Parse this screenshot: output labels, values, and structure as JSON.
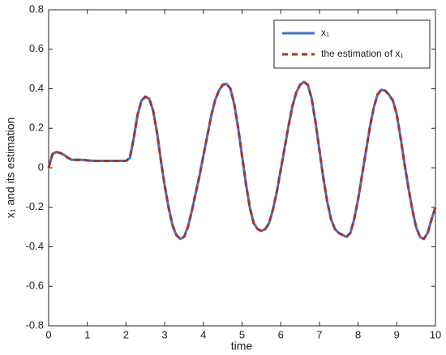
{
  "chart_data": {
    "type": "line",
    "xlabel": "time",
    "ylabel": "x₁ and its estimation",
    "x": [
      0,
      0.1,
      0.2,
      0.3,
      0.4,
      0.5,
      0.6,
      0.7,
      0.8,
      0.9,
      1,
      1.1,
      1.2,
      1.3,
      1.4,
      1.5,
      1.6,
      1.7,
      1.8,
      1.9,
      2,
      2.1,
      2.2,
      2.3,
      2.4,
      2.5,
      2.6,
      2.7,
      2.8,
      2.9,
      3,
      3.1,
      3.2,
      3.3,
      3.4,
      3.5,
      3.6,
      3.7,
      3.8,
      3.9,
      4,
      4.1,
      4.2,
      4.3,
      4.4,
      4.5,
      4.6,
      4.7,
      4.8,
      4.9,
      5,
      5.1,
      5.2,
      5.3,
      5.4,
      5.5,
      5.6,
      5.7,
      5.8,
      5.9,
      6,
      6.1,
      6.2,
      6.3,
      6.4,
      6.5,
      6.6,
      6.7,
      6.8,
      6.9,
      7,
      7.1,
      7.2,
      7.3,
      7.4,
      7.5,
      7.6,
      7.7,
      7.8,
      7.9,
      8,
      8.1,
      8.2,
      8.3,
      8.4,
      8.5,
      8.6,
      8.7,
      8.8,
      8.9,
      9,
      9.1,
      9.2,
      9.3,
      9.4,
      9.5,
      9.6,
      9.7,
      9.8,
      9.9,
      10
    ],
    "series": [
      {
        "name": "x₁",
        "color": "#4472c4",
        "dashed": false,
        "values": [
          0,
          0.07,
          0.08,
          0.075,
          0.065,
          0.05,
          0.04,
          0.04,
          0.04,
          0.04,
          0.037,
          0.036,
          0.035,
          0.035,
          0.035,
          0.035,
          0.035,
          0.035,
          0.035,
          0.035,
          0.035,
          0.05,
          0.15,
          0.27,
          0.34,
          0.36,
          0.35,
          0.29,
          0.18,
          0.04,
          -0.09,
          -0.2,
          -0.29,
          -0.34,
          -0.36,
          -0.35,
          -0.3,
          -0.22,
          -0.13,
          -0.04,
          0.06,
          0.16,
          0.26,
          0.34,
          0.39,
          0.42,
          0.425,
          0.4,
          0.32,
          0.2,
          0.06,
          -0.08,
          -0.2,
          -0.28,
          -0.31,
          -0.32,
          -0.31,
          -0.28,
          -0.21,
          -0.12,
          -0.01,
          0.1,
          0.21,
          0.31,
          0.38,
          0.42,
          0.435,
          0.42,
          0.35,
          0.23,
          0.09,
          -0.05,
          -0.17,
          -0.26,
          -0.31,
          -0.33,
          -0.34,
          -0.35,
          -0.33,
          -0.26,
          -0.16,
          -0.04,
          0.08,
          0.2,
          0.3,
          0.37,
          0.395,
          0.39,
          0.37,
          0.34,
          0.27,
          0.15,
          0.02,
          -0.1,
          -0.21,
          -0.3,
          -0.35,
          -0.36,
          -0.33,
          -0.26,
          -0.2
        ]
      },
      {
        "name": "the estimation of x₁",
        "color": "#a8322d",
        "dashed": true,
        "values": [
          0,
          0.07,
          0.08,
          0.075,
          0.065,
          0.05,
          0.04,
          0.04,
          0.04,
          0.04,
          0.037,
          0.036,
          0.035,
          0.035,
          0.035,
          0.035,
          0.035,
          0.035,
          0.035,
          0.035,
          0.035,
          0.05,
          0.15,
          0.27,
          0.34,
          0.36,
          0.35,
          0.29,
          0.18,
          0.04,
          -0.09,
          -0.2,
          -0.29,
          -0.34,
          -0.36,
          -0.35,
          -0.3,
          -0.22,
          -0.13,
          -0.04,
          0.06,
          0.16,
          0.26,
          0.34,
          0.39,
          0.42,
          0.425,
          0.4,
          0.32,
          0.2,
          0.06,
          -0.08,
          -0.2,
          -0.28,
          -0.31,
          -0.32,
          -0.31,
          -0.28,
          -0.21,
          -0.12,
          -0.01,
          0.1,
          0.21,
          0.31,
          0.38,
          0.42,
          0.435,
          0.42,
          0.35,
          0.23,
          0.09,
          -0.05,
          -0.17,
          -0.26,
          -0.31,
          -0.33,
          -0.34,
          -0.35,
          -0.33,
          -0.26,
          -0.16,
          -0.04,
          0.08,
          0.2,
          0.3,
          0.37,
          0.395,
          0.39,
          0.37,
          0.34,
          0.27,
          0.15,
          0.02,
          -0.1,
          -0.21,
          -0.3,
          -0.35,
          -0.36,
          -0.33,
          -0.26,
          -0.2
        ]
      }
    ],
    "xlim": [
      0,
      10
    ],
    "xticks": [
      0,
      1,
      2,
      3,
      4,
      5,
      6,
      7,
      8,
      9,
      10
    ],
    "ylim": [
      -0.8,
      0.8
    ],
    "yticks": [
      -0.8,
      -0.6,
      -0.4,
      -0.2,
      0,
      0.2,
      0.4,
      0.6,
      0.8
    ],
    "legend": "upper right",
    "grid": false
  }
}
